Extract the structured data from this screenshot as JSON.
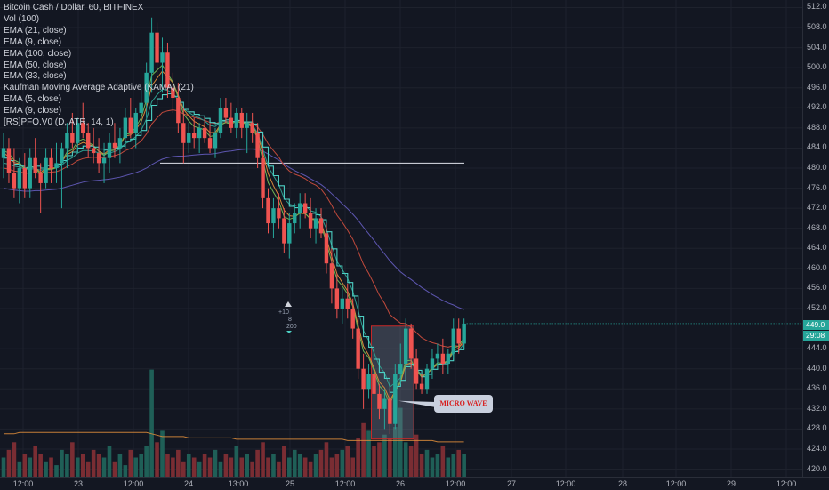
{
  "legend": {
    "title": "Bitcoin Cash / Dollar, 60, BITFINEX",
    "indicators": [
      "Vol (100)",
      "EMA (21, close)",
      "EMA (9, close)",
      "EMA (100, close)",
      "EMA (50, close)",
      "EMA (33, close)",
      "Kaufman Moving Average Adaptive (KAMA) (21)",
      "EMA (5, close)",
      "EMA (9, close)",
      "[RS]PFO.V0 (D, ATR, 14, 1)"
    ]
  },
  "price_axis": {
    "ticks": [
      "512.0",
      "508.0",
      "504.0",
      "500.0",
      "496.0",
      "492.0",
      "488.0",
      "484.0",
      "480.0",
      "476.0",
      "472.0",
      "468.0",
      "464.0",
      "460.0",
      "456.0",
      "452.0",
      "444.0",
      "440.0",
      "436.0",
      "432.0",
      "428.0",
      "424.0",
      "420.0"
    ],
    "last_price_label": "449.0",
    "countdown_label": "29:08"
  },
  "time_axis": {
    "ticks": [
      "12:00",
      "23",
      "12:00",
      "24",
      "13:00",
      "25",
      "12:00",
      "26",
      "12:00",
      "27",
      "12:00",
      "28",
      "12:00",
      "29",
      "12:00"
    ]
  },
  "annotation": {
    "label": "MICRO WAVE",
    "mark_plus": "+10",
    "mark_a": "8",
    "mark_b": "200"
  },
  "colors": {
    "background": "#131722",
    "up": "#26a69a",
    "down": "#ef5350",
    "vol_up": "#1f5f57",
    "vol_down": "#7a2d33",
    "ema_teal": "#4dd0c4",
    "ema_purple": "#5d56b0",
    "ema_orange": "#d9893a",
    "ema_red": "#c24a3c",
    "ema_green": "#6fb454",
    "kama": "#2e9e8f",
    "box_fill": "rgba(120,130,150,0.35)",
    "box_border": "#c62828"
  },
  "chart_data": {
    "type": "candlestick",
    "ylim": [
      418.5,
      513.5
    ],
    "horizontal_line": 481.0,
    "candles": [
      {
        "o": 482,
        "h": 487,
        "l": 478,
        "c": 484
      },
      {
        "o": 484,
        "h": 486,
        "l": 477,
        "c": 479
      },
      {
        "o": 479,
        "h": 484,
        "l": 474,
        "c": 476
      },
      {
        "o": 476,
        "h": 482,
        "l": 473,
        "c": 480
      },
      {
        "o": 480,
        "h": 483,
        "l": 474,
        "c": 476
      },
      {
        "o": 476,
        "h": 484,
        "l": 474,
        "c": 482
      },
      {
        "o": 482,
        "h": 486,
        "l": 478,
        "c": 479
      },
      {
        "o": 479,
        "h": 481,
        "l": 471,
        "c": 477
      },
      {
        "o": 477,
        "h": 484,
        "l": 476,
        "c": 482
      },
      {
        "o": 482,
        "h": 484,
        "l": 477,
        "c": 480
      },
      {
        "o": 480,
        "h": 485,
        "l": 477,
        "c": 481
      },
      {
        "o": 481,
        "h": 485,
        "l": 472,
        "c": 484
      },
      {
        "o": 484,
        "h": 489,
        "l": 480,
        "c": 487
      },
      {
        "o": 487,
        "h": 491,
        "l": 484,
        "c": 485
      },
      {
        "o": 485,
        "h": 490,
        "l": 483,
        "c": 489
      },
      {
        "o": 489,
        "h": 493,
        "l": 486,
        "c": 487
      },
      {
        "o": 487,
        "h": 489,
        "l": 482,
        "c": 484
      },
      {
        "o": 484,
        "h": 488,
        "l": 481,
        "c": 483
      },
      {
        "o": 483,
        "h": 486,
        "l": 479,
        "c": 481
      },
      {
        "o": 481,
        "h": 485,
        "l": 477,
        "c": 482
      },
      {
        "o": 482,
        "h": 487,
        "l": 479,
        "c": 485
      },
      {
        "o": 485,
        "h": 489,
        "l": 482,
        "c": 484
      },
      {
        "o": 484,
        "h": 488,
        "l": 481,
        "c": 486
      },
      {
        "o": 486,
        "h": 492,
        "l": 484,
        "c": 490
      },
      {
        "o": 490,
        "h": 494,
        "l": 486,
        "c": 487
      },
      {
        "o": 487,
        "h": 492,
        "l": 484,
        "c": 491
      },
      {
        "o": 491,
        "h": 496,
        "l": 487,
        "c": 493
      },
      {
        "o": 493,
        "h": 501,
        "l": 490,
        "c": 499
      },
      {
        "o": 499,
        "h": 510,
        "l": 495,
        "c": 507
      },
      {
        "o": 507,
        "h": 509,
        "l": 498,
        "c": 501
      },
      {
        "o": 501,
        "h": 506,
        "l": 495,
        "c": 503
      },
      {
        "o": 503,
        "h": 505,
        "l": 494,
        "c": 496
      },
      {
        "o": 496,
        "h": 499,
        "l": 491,
        "c": 494
      },
      {
        "o": 494,
        "h": 497,
        "l": 487,
        "c": 489
      },
      {
        "o": 489,
        "h": 492,
        "l": 481,
        "c": 485
      },
      {
        "o": 485,
        "h": 489,
        "l": 483,
        "c": 487
      },
      {
        "o": 487,
        "h": 490,
        "l": 484,
        "c": 486
      },
      {
        "o": 486,
        "h": 489,
        "l": 483,
        "c": 488
      },
      {
        "o": 488,
        "h": 490,
        "l": 485,
        "c": 486
      },
      {
        "o": 486,
        "h": 489,
        "l": 483,
        "c": 484
      },
      {
        "o": 484,
        "h": 488,
        "l": 482,
        "c": 487
      },
      {
        "o": 487,
        "h": 494,
        "l": 486,
        "c": 492
      },
      {
        "o": 492,
        "h": 494,
        "l": 489,
        "c": 490
      },
      {
        "o": 490,
        "h": 493,
        "l": 487,
        "c": 488
      },
      {
        "o": 488,
        "h": 492,
        "l": 486,
        "c": 491
      },
      {
        "o": 491,
        "h": 492,
        "l": 486,
        "c": 488
      },
      {
        "o": 488,
        "h": 491,
        "l": 483,
        "c": 489
      },
      {
        "o": 489,
        "h": 491,
        "l": 485,
        "c": 487
      },
      {
        "o": 487,
        "h": 489,
        "l": 480,
        "c": 482
      },
      {
        "o": 482,
        "h": 484,
        "l": 472,
        "c": 474
      },
      {
        "o": 474,
        "h": 476,
        "l": 467,
        "c": 469
      },
      {
        "o": 469,
        "h": 474,
        "l": 466,
        "c": 472
      },
      {
        "o": 472,
        "h": 475,
        "l": 468,
        "c": 470
      },
      {
        "o": 470,
        "h": 472,
        "l": 463,
        "c": 465
      },
      {
        "o": 465,
        "h": 471,
        "l": 462,
        "c": 469
      },
      {
        "o": 469,
        "h": 473,
        "l": 467,
        "c": 471
      },
      {
        "o": 471,
        "h": 475,
        "l": 468,
        "c": 473
      },
      {
        "o": 473,
        "h": 475,
        "l": 470,
        "c": 471
      },
      {
        "o": 471,
        "h": 474,
        "l": 466,
        "c": 468
      },
      {
        "o": 468,
        "h": 472,
        "l": 465,
        "c": 470
      },
      {
        "o": 470,
        "h": 472,
        "l": 466,
        "c": 467
      },
      {
        "o": 467,
        "h": 469,
        "l": 459,
        "c": 461
      },
      {
        "o": 461,
        "h": 464,
        "l": 453,
        "c": 456
      },
      {
        "o": 456,
        "h": 459,
        "l": 450,
        "c": 452
      },
      {
        "o": 452,
        "h": 456,
        "l": 449,
        "c": 454
      },
      {
        "o": 454,
        "h": 457,
        "l": 450,
        "c": 452
      },
      {
        "o": 452,
        "h": 454,
        "l": 446,
        "c": 448
      },
      {
        "o": 448,
        "h": 451,
        "l": 438,
        "c": 440
      },
      {
        "o": 440,
        "h": 443,
        "l": 432,
        "c": 436
      },
      {
        "o": 436,
        "h": 441,
        "l": 434,
        "c": 439
      },
      {
        "o": 439,
        "h": 442,
        "l": 433,
        "c": 435
      },
      {
        "o": 435,
        "h": 437,
        "l": 430,
        "c": 432
      },
      {
        "o": 432,
        "h": 436,
        "l": 428,
        "c": 434
      },
      {
        "o": 434,
        "h": 436,
        "l": 427,
        "c": 429
      },
      {
        "o": 429,
        "h": 441,
        "l": 428,
        "c": 439
      },
      {
        "o": 439,
        "h": 445,
        "l": 437,
        "c": 441
      },
      {
        "o": 441,
        "h": 450,
        "l": 440,
        "c": 448
      },
      {
        "o": 448,
        "h": 449,
        "l": 440,
        "c": 442
      },
      {
        "o": 442,
        "h": 444,
        "l": 436,
        "c": 437
      },
      {
        "o": 437,
        "h": 439,
        "l": 435,
        "c": 436
      },
      {
        "o": 436,
        "h": 441,
        "l": 435,
        "c": 440
      },
      {
        "o": 440,
        "h": 444,
        "l": 438,
        "c": 442
      },
      {
        "o": 442,
        "h": 445,
        "l": 440,
        "c": 443
      },
      {
        "o": 443,
        "h": 446,
        "l": 439,
        "c": 441
      },
      {
        "o": 441,
        "h": 444,
        "l": 439,
        "c": 443
      },
      {
        "o": 443,
        "h": 450,
        "l": 442,
        "c": 448
      },
      {
        "o": 448,
        "h": 450,
        "l": 443,
        "c": 445
      },
      {
        "o": 445,
        "h": 450,
        "l": 444,
        "c": 449
      }
    ],
    "volume": [
      5,
      7,
      9,
      4,
      6,
      5,
      8,
      6,
      4,
      5,
      3,
      7,
      6,
      9,
      5,
      6,
      4,
      7,
      6,
      5,
      8,
      4,
      6,
      3,
      7,
      5,
      6,
      8,
      28,
      9,
      12,
      6,
      5,
      7,
      4,
      6,
      5,
      4,
      6,
      5,
      7,
      4,
      6,
      5,
      8,
      5,
      6,
      4,
      7,
      9,
      5,
      6,
      4,
      8,
      5,
      7,
      6,
      5,
      4,
      6,
      7,
      9,
      5,
      6,
      7,
      8,
      5,
      10,
      14,
      12,
      8,
      9,
      11,
      10,
      13,
      18,
      9,
      8,
      11,
      6,
      7,
      5,
      6,
      8,
      5,
      6,
      7,
      6
    ],
    "lines": {
      "ema_teal": [
        482,
        481.5,
        480.8,
        480.4,
        480,
        480.2,
        480.4,
        480,
        480.5,
        480.6,
        480.8,
        481.5,
        482.5,
        483.2,
        484,
        484.4,
        484.4,
        484.2,
        483.8,
        483.6,
        483.8,
        484,
        484.4,
        485.3,
        485.8,
        486.5,
        487.5,
        489.5,
        492.5,
        493.8,
        494.6,
        494.8,
        494.3,
        493.1,
        491.7,
        491.2,
        490.7,
        490.4,
        489.9,
        489.1,
        488.9,
        489.5,
        489.6,
        489.3,
        489.5,
        489.2,
        489.2,
        488.8,
        487.2,
        484.2,
        480.4,
        478.5,
        476.5,
        473.8,
        472.4,
        472.1,
        472.4,
        472.1,
        471,
        470.7,
        469.7,
        467.3,
        463.9,
        460.5,
        459,
        457.2,
        454.5,
        450.5,
        446.4,
        444.3,
        441.9,
        439.3,
        438.1,
        435.3,
        436.5,
        437.7,
        440.4,
        440.9,
        439.7,
        438.4,
        438.9,
        439.9,
        440.9,
        441,
        441.6,
        443.4,
        443.8,
        445.3
      ],
      "ema_purple": [
        476,
        475.8,
        475.6,
        475.5,
        475.4,
        475.4,
        475.5,
        475.5,
        475.6,
        475.7,
        475.8,
        476,
        476.3,
        476.6,
        476.9,
        477.2,
        477.4,
        477.5,
        477.6,
        477.7,
        477.8,
        478,
        478.2,
        478.5,
        478.8,
        479.1,
        479.5,
        480,
        480.7,
        481.3,
        481.8,
        482.1,
        482.3,
        482.4,
        482.4,
        482.5,
        482.6,
        482.7,
        482.8,
        482.8,
        482.9,
        483.1,
        483.3,
        483.4,
        483.6,
        483.7,
        483.8,
        483.8,
        483.7,
        483.4,
        482.8,
        482.2,
        481.6,
        480.8,
        480.1,
        479.5,
        479,
        478.5,
        477.9,
        477.3,
        476.7,
        475.9,
        474.9,
        473.9,
        472.9,
        471.9,
        470.8,
        469.6,
        468.2,
        466.9,
        465.6,
        464.2,
        462.9,
        461.5,
        460.4,
        459.3,
        458.5,
        457.8,
        457,
        456.2,
        455.5,
        454.8,
        454.2,
        453.6,
        453.1,
        452.7,
        452.2,
        451.8
      ],
      "ema_orange": [
        483,
        482.3,
        481.1,
        480.9,
        479.8,
        480.4,
        480.1,
        479.1,
        479.9,
        479.9,
        480.2,
        481.3,
        482.7,
        483.3,
        484.6,
        485.1,
        484.8,
        484.3,
        483.4,
        482.8,
        483.7,
        483.8,
        484.6,
        486.4,
        486.6,
        487.7,
        489.2,
        492.1,
        496.4,
        497.9,
        499.3,
        498.2,
        497,
        494.6,
        491.7,
        490.4,
        489.3,
        488.8,
        488.2,
        487.1,
        487.1,
        488.7,
        489.1,
        488.8,
        489.4,
        489,
        489,
        488.4,
        486.6,
        483,
        478.9,
        476.5,
        474.5,
        471.6,
        470.5,
        470.4,
        471,
        470.9,
        469.9,
        469.9,
        469,
        466,
        462.4,
        458.9,
        457.2,
        455.5,
        453,
        448.6,
        444.5,
        442.7,
        440.1,
        437.4,
        436.2,
        433.8,
        435.5,
        437.3,
        440.8,
        441.2,
        439.8,
        438.5,
        439,
        440,
        440.9,
        441,
        441.6,
        443.7,
        444.1,
        445.7
      ],
      "ema_red": [
        480,
        479.8,
        479.4,
        479.3,
        479,
        479,
        479.1,
        478.9,
        479.1,
        479.2,
        479.3,
        479.7,
        480.3,
        480.8,
        481.5,
        481.9,
        482.1,
        482.2,
        482.1,
        482.1,
        482.3,
        482.5,
        482.8,
        483.5,
        483.9,
        484.6,
        485.4,
        486.8,
        488.8,
        490,
        491.1,
        491.4,
        491.6,
        491.4,
        490.8,
        490.5,
        490.1,
        489.8,
        489.5,
        489.1,
        488.9,
        489.2,
        489.3,
        489.2,
        489.3,
        489.2,
        489.2,
        489,
        488.2,
        486.7,
        484.8,
        483.5,
        482.2,
        480.5,
        479.4,
        478.8,
        478.4,
        477.9,
        477.1,
        476.6,
        475.8,
        474.4,
        472.6,
        470.6,
        469.2,
        467.6,
        465.8,
        463.4,
        460.8,
        459,
        456.9,
        454.7,
        453,
        450.8,
        449.9,
        449.1,
        449,
        448.3,
        447.2,
        446.2,
        445.6,
        445.2,
        444.9,
        444.5,
        444.3,
        444.6,
        444.5,
        444.9
      ],
      "ema_green": [
        483.5,
        483,
        481.6,
        481.1,
        479.9,
        480.4,
        480,
        478.7,
        479.7,
        479.7,
        480.1,
        481.4,
        483.2,
        483.7,
        485.3,
        485.8,
        485.2,
        484.5,
        483.3,
        482.5,
        483.4,
        483.6,
        484.5,
        486.8,
        486.9,
        488.2,
        490,
        493.6,
        498.5,
        499.5,
        500.5,
        498.8,
        497.1,
        494.1,
        490.8,
        489.4,
        488.3,
        488,
        487.6,
        486.3,
        486.5,
        488.6,
        489.1,
        488.8,
        489.4,
        488.9,
        488.9,
        488.1,
        485.9,
        481.5,
        477.1,
        475.2,
        473.4,
        470.3,
        469.8,
        470.2,
        471.1,
        471,
        469.8,
        469.7,
        468.6,
        465.2,
        461.3,
        457.8,
        456.5,
        454.9,
        452.4,
        447.8,
        443.5,
        442.2,
        439.6,
        436.6,
        435.5,
        432.9,
        435.5,
        437.6,
        441.6,
        441.7,
        439.8,
        438.3,
        439,
        440.2,
        441.2,
        441.1,
        441.7,
        444.2,
        444.5,
        446.2
      ],
      "kama": [
        481,
        480.8,
        480.4,
        480.2,
        479.8,
        479.8,
        479.9,
        479.6,
        479.8,
        479.9,
        480,
        480.6,
        481.5,
        482.1,
        483,
        483.5,
        483.5,
        483.4,
        483,
        482.8,
        483,
        483.3,
        483.8,
        484.9,
        485.4,
        486.3,
        487.5,
        489.8,
        493.2,
        494.6,
        495.7,
        495.5,
        494.9,
        493.6,
        491.8,
        491.1,
        490.4,
        490,
        489.4,
        488.5,
        488.3,
        489.2,
        489.3,
        489,
        489.4,
        489.1,
        489.1,
        488.6,
        487,
        483.8,
        480.3,
        478.5,
        476.7,
        474,
        472.8,
        472.5,
        472.8,
        472.6,
        471.5,
        471.2,
        470.3,
        467.9,
        464.6,
        461.4,
        459.8,
        458,
        455.4,
        451.6,
        447.6,
        445.6,
        443.2,
        440.6,
        439.2,
        436.4,
        437.2,
        438.2,
        440.6,
        441,
        440,
        438.8,
        439.1,
        440,
        440.9,
        441,
        441.5,
        443.3,
        443.6,
        445
      ]
    },
    "volume_ema": [
      3.2,
      3.2,
      3.2,
      3.3,
      3.3,
      3.3,
      3.3,
      3.3,
      3.3,
      3.3,
      3.3,
      3.3,
      3.3,
      3.3,
      3.3,
      3.3,
      3.3,
      3.3,
      3.3,
      3.3,
      3.3,
      3.3,
      3.3,
      3.3,
      3.3,
      3.3,
      3.3,
      3.3,
      3.2,
      3.1,
      3,
      3,
      3,
      3,
      3,
      2.9,
      2.9,
      2.9,
      2.9,
      2.9,
      2.9,
      2.9,
      2.9,
      2.9,
      2.8,
      2.8,
      2.8,
      2.8,
      2.8,
      2.8,
      2.8,
      2.8,
      2.8,
      2.8,
      2.8,
      2.8,
      2.8,
      2.8,
      2.8,
      2.8,
      2.8,
      2.8,
      2.8,
      2.8,
      2.8,
      2.7,
      2.7,
      2.7,
      2.7,
      2.7,
      2.7,
      2.7,
      2.7,
      2.7,
      2.7,
      2.7,
      2.7,
      2.7,
      2.7,
      2.7,
      2.7,
      2.7,
      2.6,
      2.6,
      2.6,
      2.6,
      2.6,
      2.6
    ]
  }
}
